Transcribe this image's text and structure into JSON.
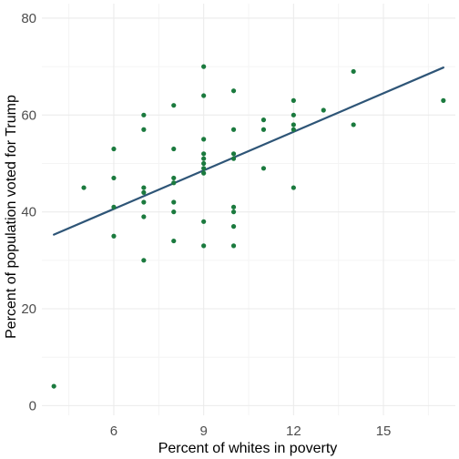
{
  "chart_data": {
    "type": "scatter",
    "title": "",
    "xlabel": "Percent of whites in poverty",
    "ylabel": "Percent of population voted for Trump",
    "xlim": [
      3.6,
      17.4
    ],
    "ylim": [
      -2,
      83
    ],
    "x_major_ticks": [
      6,
      9,
      12,
      15
    ],
    "y_major_ticks": [
      0,
      20,
      40,
      60,
      80
    ],
    "x_minor_ticks": [
      4.5,
      7.5,
      10.5,
      13.5,
      16.5
    ],
    "y_minor_ticks": [
      10,
      30,
      50,
      70
    ],
    "grid": true,
    "colors": {
      "points": "#1b7a3e",
      "fit_line": "#2e5577",
      "grid_major": "#ebebeb",
      "grid_minor": "#f4f4f4"
    },
    "points": [
      {
        "x": 4,
        "y": 4
      },
      {
        "x": 5,
        "y": 45
      },
      {
        "x": 6,
        "y": 53
      },
      {
        "x": 6,
        "y": 47
      },
      {
        "x": 6,
        "y": 41
      },
      {
        "x": 6,
        "y": 35
      },
      {
        "x": 7,
        "y": 60
      },
      {
        "x": 7,
        "y": 57
      },
      {
        "x": 7,
        "y": 45
      },
      {
        "x": 7,
        "y": 44
      },
      {
        "x": 7,
        "y": 42
      },
      {
        "x": 7,
        "y": 39
      },
      {
        "x": 7,
        "y": 30
      },
      {
        "x": 8,
        "y": 62
      },
      {
        "x": 8,
        "y": 53
      },
      {
        "x": 8,
        "y": 47
      },
      {
        "x": 8,
        "y": 46
      },
      {
        "x": 8,
        "y": 42
      },
      {
        "x": 8,
        "y": 40
      },
      {
        "x": 8,
        "y": 34
      },
      {
        "x": 9,
        "y": 70
      },
      {
        "x": 9,
        "y": 64
      },
      {
        "x": 9,
        "y": 55
      },
      {
        "x": 9,
        "y": 52
      },
      {
        "x": 9,
        "y": 51
      },
      {
        "x": 9,
        "y": 50
      },
      {
        "x": 9,
        "y": 49
      },
      {
        "x": 9,
        "y": 48
      },
      {
        "x": 9,
        "y": 38
      },
      {
        "x": 9,
        "y": 33
      },
      {
        "x": 10,
        "y": 65
      },
      {
        "x": 10,
        "y": 57
      },
      {
        "x": 10,
        "y": 52
      },
      {
        "x": 10,
        "y": 51
      },
      {
        "x": 10,
        "y": 41
      },
      {
        "x": 10,
        "y": 40
      },
      {
        "x": 10,
        "y": 37
      },
      {
        "x": 10,
        "y": 33
      },
      {
        "x": 11,
        "y": 59
      },
      {
        "x": 11,
        "y": 57
      },
      {
        "x": 11,
        "y": 49
      },
      {
        "x": 12,
        "y": 63
      },
      {
        "x": 12,
        "y": 60
      },
      {
        "x": 12,
        "y": 58
      },
      {
        "x": 12,
        "y": 57
      },
      {
        "x": 12,
        "y": 45
      },
      {
        "x": 13,
        "y": 61
      },
      {
        "x": 14,
        "y": 69
      },
      {
        "x": 14,
        "y": 58
      },
      {
        "x": 17,
        "y": 63
      }
    ],
    "fit_line": {
      "x": [
        4,
        17
      ],
      "y": [
        35.3,
        69.8
      ]
    }
  }
}
